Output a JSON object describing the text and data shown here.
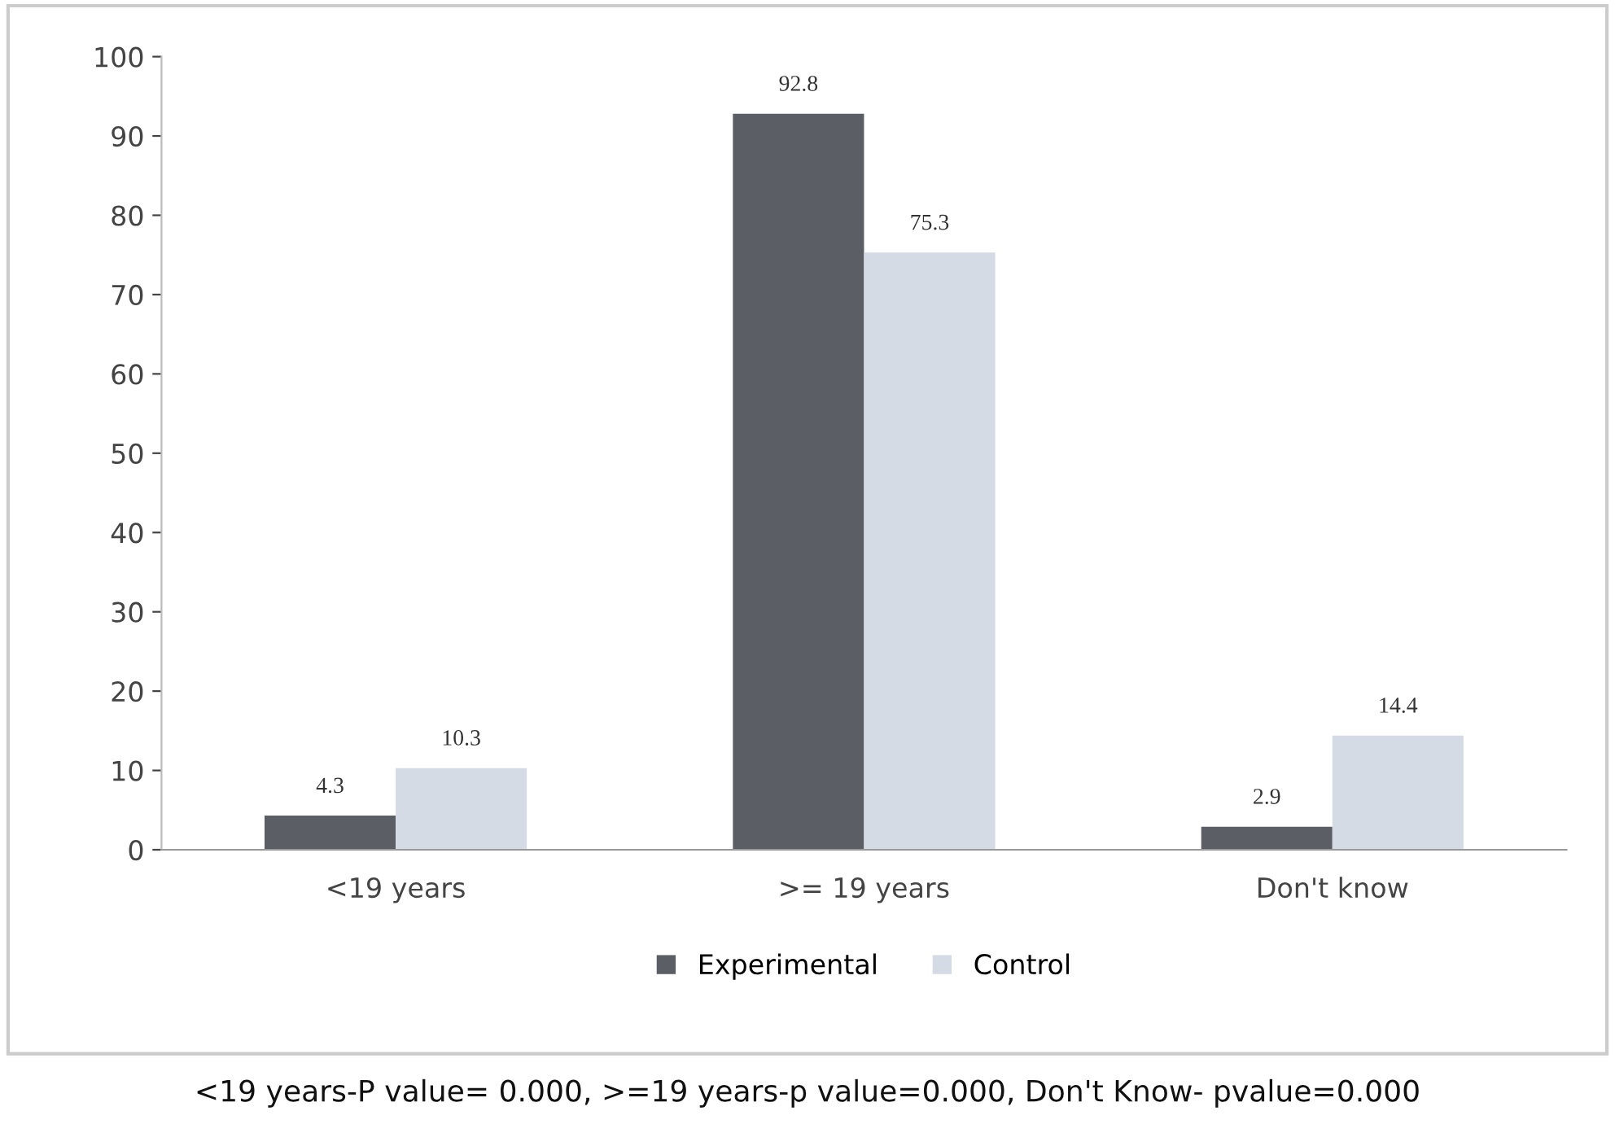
{
  "chart_data": {
    "type": "bar",
    "categories": [
      "<19 years",
      ">= 19 years",
      "Don't know"
    ],
    "series": [
      {
        "name": "Experimental",
        "color": "#5b5e64",
        "values": [
          4.3,
          92.8,
          2.9
        ]
      },
      {
        "name": "Control",
        "color": "#d5dbe5",
        "values": [
          10.3,
          75.3,
          14.4
        ]
      }
    ],
    "ylim": [
      0,
      100
    ],
    "yticks": [
      0,
      10,
      20,
      30,
      40,
      50,
      60,
      70,
      80,
      90,
      100
    ],
    "grid": false,
    "legend": "bottom",
    "data_labels": true,
    "annotations": [
      "<19 years-P value= 0.000, >=19 years-p value=0.000, Don't Know- pvalue=0.000"
    ]
  }
}
